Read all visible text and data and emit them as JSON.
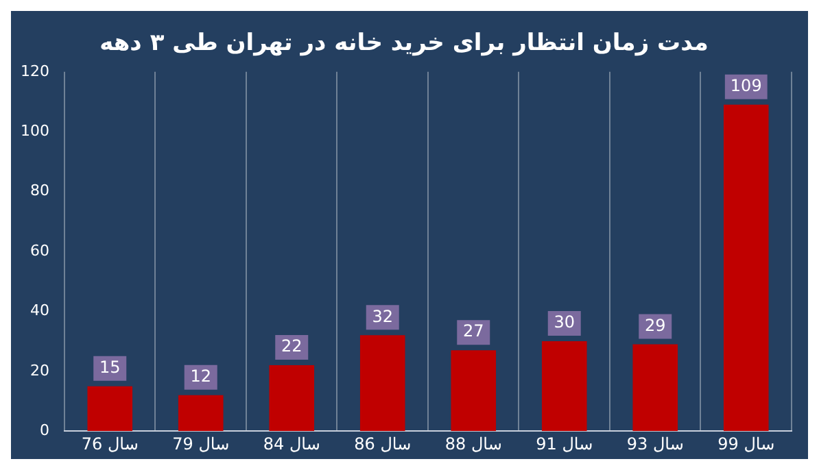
{
  "chart_data": {
    "type": "bar",
    "title": "مدت زمان انتظار برای خرید خانه در تهران طی ۳ دهه",
    "categories": [
      "سال 76",
      "سال 79",
      "سال 84",
      "سال 86",
      "سال 88",
      "سال 91",
      "سال 93",
      "سال 99"
    ],
    "values": [
      15,
      12,
      22,
      32,
      27,
      30,
      29,
      109
    ],
    "color": "#c00000",
    "ylim": [
      0,
      120
    ],
    "yticks": [
      0,
      20,
      40,
      60,
      80,
      100,
      120
    ],
    "grid": "x",
    "data_labels": true
  }
}
